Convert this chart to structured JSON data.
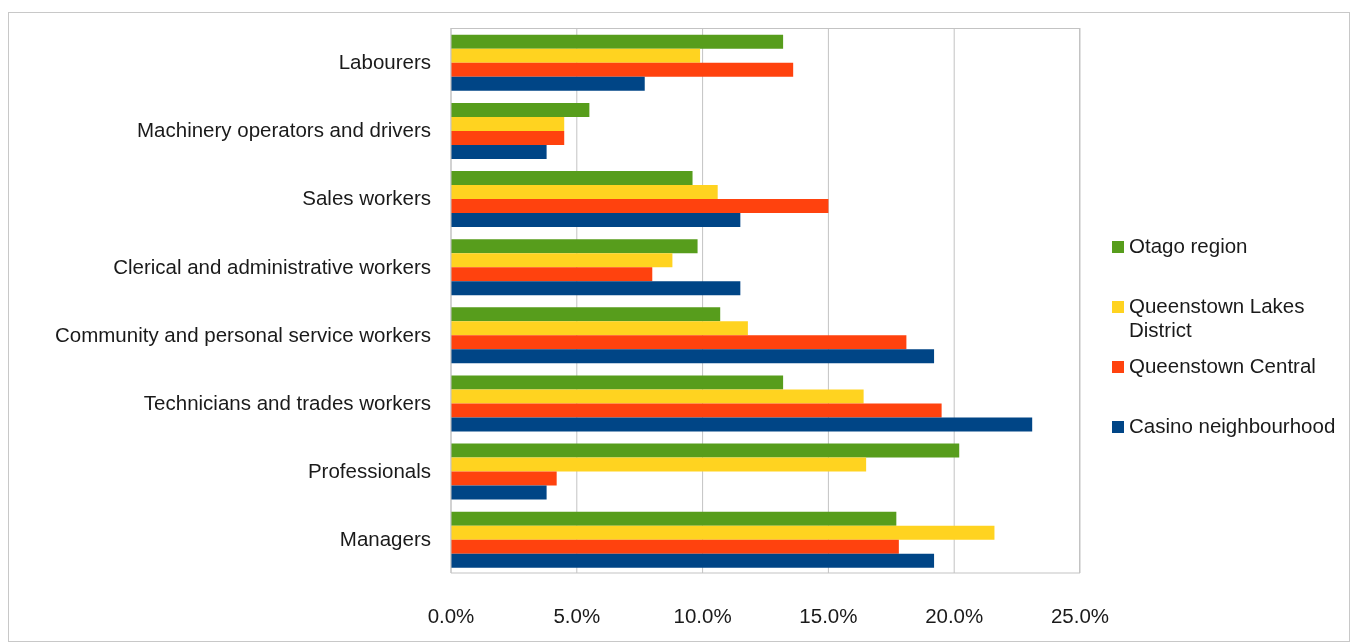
{
  "chart_data": {
    "type": "bar",
    "orientation": "horizontal",
    "categories": [
      "Labourers",
      "Machinery operators and drivers",
      "Sales workers",
      "Clerical and administrative workers",
      "Community and personal service workers",
      "Technicians and trades workers",
      "Professionals",
      "Managers"
    ],
    "series": [
      {
        "name": "Otago region",
        "color": "#579d1c",
        "values": [
          13.2,
          5.5,
          9.6,
          9.8,
          10.7,
          13.2,
          20.2,
          17.7
        ]
      },
      {
        "name": "Queenstown Lakes District",
        "color": "#ffd320",
        "values": [
          9.9,
          4.5,
          10.6,
          8.8,
          11.8,
          16.4,
          16.5,
          21.6
        ]
      },
      {
        "name": "Queenstown Central",
        "color": "#ff420e",
        "values": [
          13.6,
          4.5,
          15.0,
          8.0,
          18.1,
          19.5,
          4.2,
          17.8
        ]
      },
      {
        "name": "Casino neighbourhood",
        "color": "#004586",
        "values": [
          7.7,
          3.8,
          11.5,
          11.5,
          19.2,
          23.1,
          3.8,
          19.2
        ]
      }
    ],
    "xlim": [
      0,
      25
    ],
    "xticks": [
      {
        "value": 0,
        "label": "0.0%"
      },
      {
        "value": 5,
        "label": "5.0%"
      },
      {
        "value": 10,
        "label": "10.0%"
      },
      {
        "value": 15,
        "label": "15.0%"
      },
      {
        "value": 20,
        "label": "20.0%"
      },
      {
        "value": 25,
        "label": "25.0%"
      }
    ],
    "grid": "x",
    "legend": "right"
  }
}
